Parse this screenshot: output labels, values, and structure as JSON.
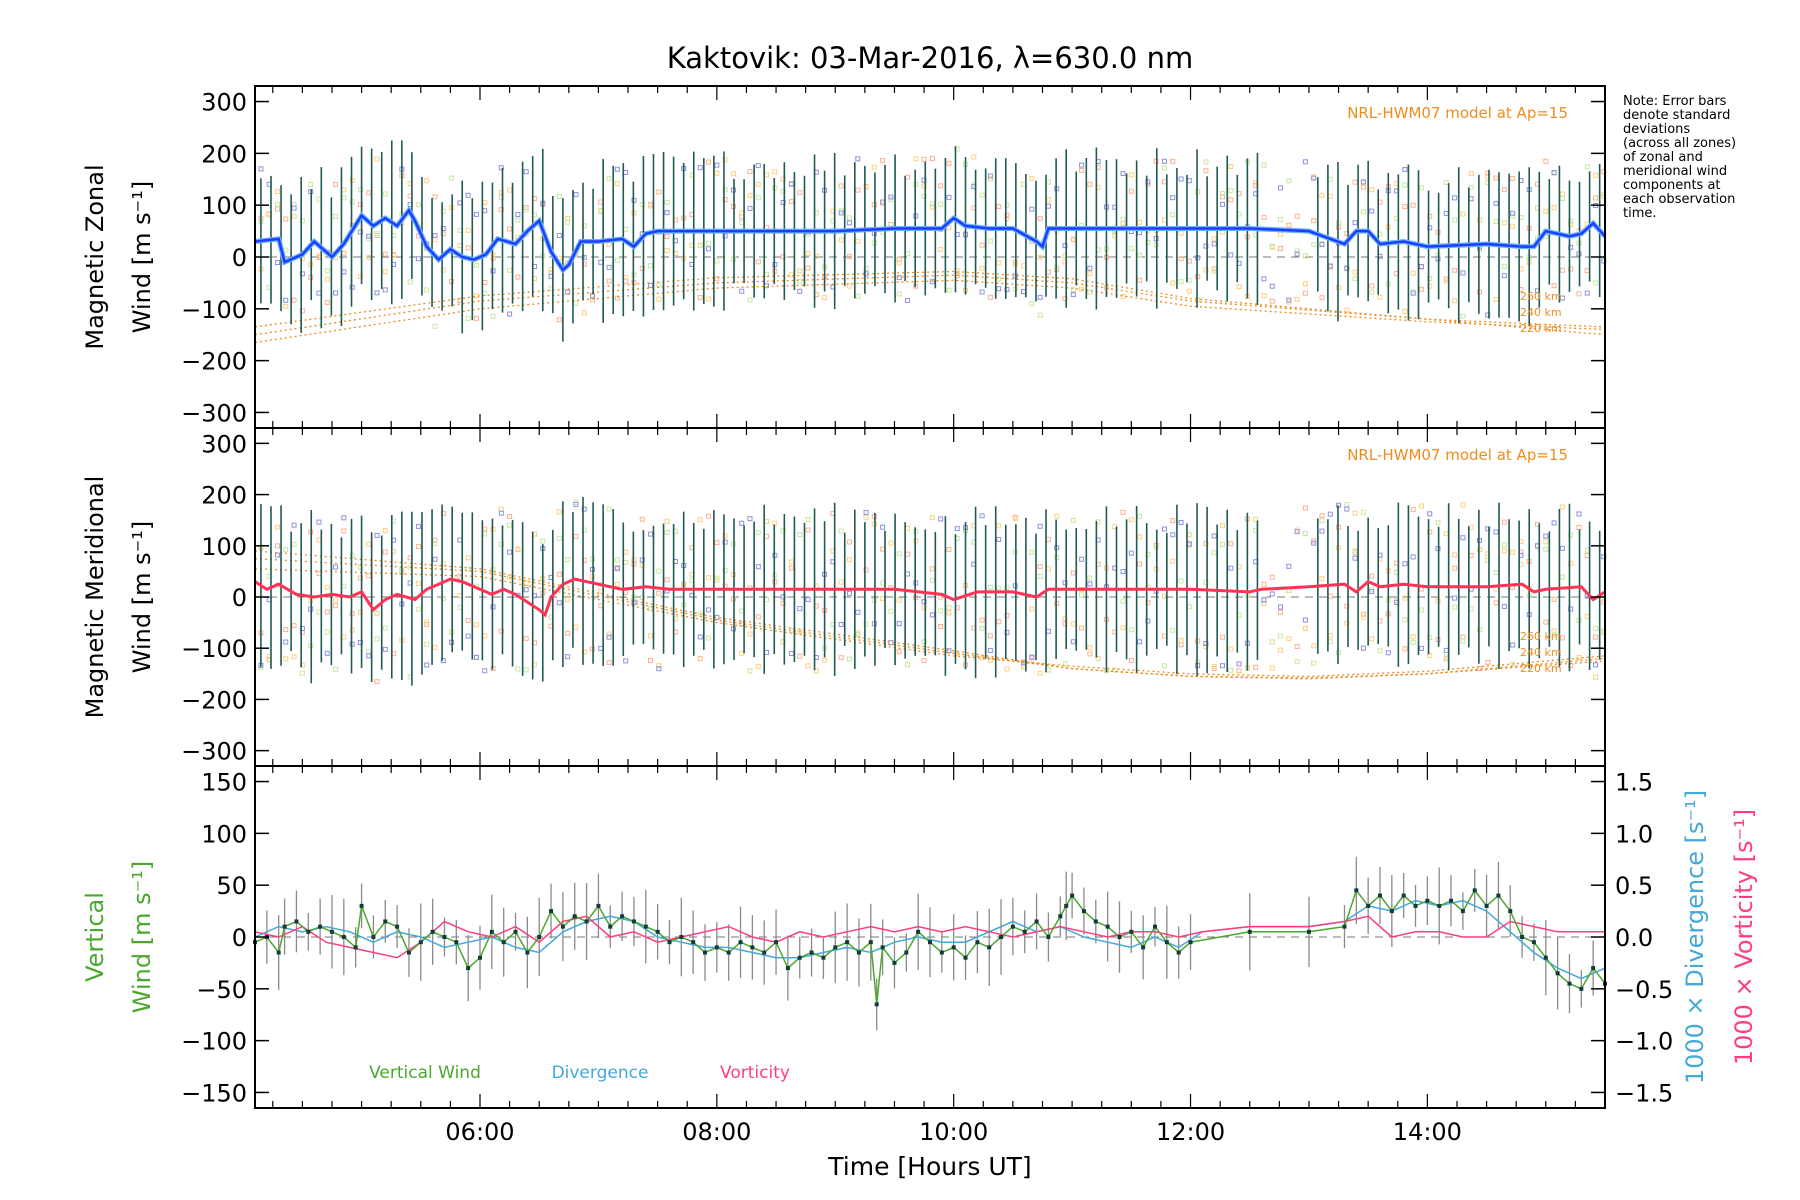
{
  "title": "Kaktovik: 03-Mar-2016, λ=630.0 nm",
  "note": "Note: Error bars\ndenote standard\ndeviations\n(across all zones)\nof zonal and\nmeridional wind\ncomponents at\neach observation\ntime.",
  "xlabel": "Time [Hours UT]",
  "colors": {
    "zonal": "#1f3dff",
    "zonal_light": "#66b4ff",
    "meridional": "#ff3355",
    "vertical": "#4aa82e",
    "divergence": "#44a8d8",
    "vorticity": "#ff3d7f",
    "hwm": "#f08c1e",
    "errorbar": "#1f5a55",
    "vert_errbar": "#8a8a8a"
  },
  "chart_data": [
    {
      "type": "line",
      "panel": "zonal",
      "ylabel": [
        "Magnetic Zonal",
        "Wind [m s⁻¹]"
      ],
      "ylim": [
        -330,
        330
      ],
      "yticks": [
        -300,
        -200,
        -100,
        0,
        100,
        200,
        300
      ],
      "xlim": [
        4.1,
        15.5
      ],
      "xticks": [
        6,
        8,
        10,
        12,
        14
      ],
      "xtick_labels": [
        "06:00",
        "08:00",
        "10:00",
        "12:00",
        "14:00"
      ],
      "model_label": "NRL-HWM07 model at Ap=15",
      "model_alt_labels": [
        "260 km",
        "240 km",
        "220 km"
      ],
      "series": [
        {
          "x": [
            4.1,
            4.3,
            4.35,
            4.5,
            4.6,
            4.75,
            4.85,
            5.0,
            5.1,
            5.2,
            5.3,
            5.4,
            5.45,
            5.55,
            5.65,
            5.75,
            5.85,
            5.95,
            6.05,
            6.15,
            6.3,
            6.4,
            6.5,
            6.6,
            6.7,
            6.75,
            6.85,
            7.0,
            7.2,
            7.3,
            7.4,
            7.5,
            8.0,
            8.5,
            9.0,
            9.5,
            9.9,
            10.0,
            10.1,
            10.3,
            10.5,
            10.7,
            10.75,
            10.8,
            11.0,
            11.5,
            12.0,
            12.5,
            13.0,
            13.3,
            13.4,
            13.5,
            13.6,
            13.8,
            14.0,
            14.5,
            14.8,
            14.9,
            15.0,
            15.2,
            15.3,
            15.4,
            15.5
          ],
          "y": [
            30,
            35,
            -10,
            5,
            30,
            0,
            25,
            80,
            60,
            75,
            60,
            90,
            70,
            20,
            -5,
            15,
            0,
            -5,
            5,
            35,
            25,
            50,
            70,
            10,
            -25,
            -15,
            30,
            30,
            35,
            20,
            45,
            50,
            50,
            50,
            50,
            55,
            55,
            75,
            60,
            55,
            55,
            30,
            20,
            55,
            55,
            55,
            55,
            55,
            50,
            25,
            50,
            50,
            25,
            30,
            20,
            25,
            20,
            20,
            50,
            40,
            45,
            65,
            40
          ]
        }
      ],
      "model_curves": [
        {
          "name": "260 km",
          "x": [
            4.1,
            6,
            8,
            10,
            11,
            12,
            14,
            15.5
          ],
          "y": [
            -165,
            -100,
            -60,
            -45,
            -60,
            -95,
            -125,
            -140
          ]
        },
        {
          "name": "240 km",
          "x": [
            4.1,
            6,
            8,
            10,
            11,
            12,
            14,
            15.5
          ],
          "y": [
            -150,
            -85,
            -50,
            -35,
            -50,
            -85,
            -120,
            -135
          ]
        },
        {
          "name": "220 km",
          "x": [
            4.1,
            6,
            8,
            10,
            11,
            12,
            14,
            15.5
          ],
          "y": [
            -135,
            -75,
            -40,
            -28,
            -42,
            -80,
            -120,
            -150
          ]
        }
      ]
    },
    {
      "type": "line",
      "panel": "meridional",
      "ylabel": [
        "Magnetic Meridional",
        "Wind [m s⁻¹]"
      ],
      "ylim": [
        -330,
        330
      ],
      "yticks": [
        -300,
        -200,
        -100,
        0,
        100,
        200,
        300
      ],
      "xlim": [
        4.1,
        15.5
      ],
      "model_label": "NRL-HWM07 model at Ap=15",
      "model_alt_labels": [
        "260 km",
        "240 km",
        "220 km"
      ],
      "series": [
        {
          "x": [
            4.1,
            4.2,
            4.3,
            4.45,
            4.6,
            4.75,
            4.9,
            5.0,
            5.1,
            5.2,
            5.3,
            5.45,
            5.55,
            5.65,
            5.75,
            5.85,
            5.95,
            6.1,
            6.2,
            6.3,
            6.4,
            6.5,
            6.55,
            6.6,
            6.7,
            6.8,
            7.0,
            7.2,
            7.4,
            7.6,
            8.0,
            8.5,
            9.0,
            9.5,
            9.9,
            10.0,
            10.2,
            10.5,
            10.7,
            10.8,
            11.0,
            11.5,
            12.0,
            12.5,
            12.6,
            13.0,
            13.3,
            13.4,
            13.5,
            13.6,
            13.8,
            14.0,
            14.5,
            14.8,
            14.9,
            15.0,
            15.3,
            15.4,
            15.5
          ],
          "y": [
            30,
            15,
            25,
            5,
            0,
            5,
            0,
            10,
            -25,
            -5,
            5,
            -5,
            15,
            25,
            35,
            30,
            20,
            5,
            15,
            5,
            -10,
            -25,
            -35,
            0,
            25,
            35,
            25,
            15,
            20,
            15,
            15,
            15,
            15,
            15,
            5,
            -5,
            10,
            10,
            0,
            15,
            15,
            15,
            15,
            10,
            15,
            20,
            25,
            10,
            30,
            20,
            25,
            20,
            20,
            25,
            10,
            15,
            20,
            -5,
            10
          ]
        }
      ],
      "model_curves": [
        {
          "name": "260 km",
          "x": [
            4.1,
            6,
            8,
            10,
            11,
            12,
            13,
            14,
            15.5
          ],
          "y": [
            55,
            40,
            -50,
            -115,
            -135,
            -150,
            -155,
            -145,
            -115
          ]
        },
        {
          "name": "240 km",
          "x": [
            4.1,
            6,
            8,
            10,
            11,
            12,
            13,
            14,
            15.5
          ],
          "y": [
            75,
            50,
            -45,
            -110,
            -140,
            -155,
            -158,
            -150,
            -120
          ]
        },
        {
          "name": "220 km",
          "x": [
            4.1,
            6,
            8,
            10,
            11,
            12,
            13,
            14,
            15.5
          ],
          "y": [
            90,
            55,
            -40,
            -105,
            -140,
            -155,
            -160,
            -150,
            -125
          ]
        }
      ]
    },
    {
      "type": "line",
      "panel": "vertical",
      "ylabel": [
        "Vertical",
        "Wind [m s⁻¹]"
      ],
      "ylim": [
        -165,
        165
      ],
      "yticks": [
        -150,
        -100,
        -50,
        0,
        50,
        100,
        150
      ],
      "right_axis": {
        "ylim": [
          -1.65,
          1.65
        ],
        "ticks": [
          -1.5,
          -1.0,
          -0.5,
          0.0,
          0.5,
          1.0,
          1.5
        ],
        "tick_labels": [
          "−1.5",
          "−1.0",
          "−0.5",
          "0.0",
          "0.5",
          "1.0",
          "1.5"
        ],
        "label_div": "1000 × Divergence [s⁻¹]",
        "label_vor": "1000 × Vorticity [s⁻¹]"
      },
      "xlim": [
        4.1,
        15.5
      ],
      "xticks": [
        6,
        8,
        10,
        12,
        14
      ],
      "xtick_labels": [
        "06:00",
        "08:00",
        "10:00",
        "12:00",
        "14:00"
      ],
      "legend": [
        "Vertical Wind",
        "Divergence",
        "Vorticity"
      ],
      "series": [
        {
          "name": "Vertical Wind",
          "x": [
            4.1,
            4.2,
            4.3,
            4.35,
            4.45,
            4.55,
            4.65,
            4.75,
            4.85,
            4.95,
            5.0,
            5.1,
            5.2,
            5.3,
            5.4,
            5.5,
            5.6,
            5.7,
            5.8,
            5.9,
            6.0,
            6.1,
            6.2,
            6.3,
            6.4,
            6.5,
            6.6,
            6.7,
            6.8,
            6.9,
            7.0,
            7.1,
            7.2,
            7.3,
            7.4,
            7.5,
            7.6,
            7.7,
            7.8,
            7.9,
            8.0,
            8.1,
            8.2,
            8.3,
            8.4,
            8.5,
            8.6,
            8.7,
            8.8,
            8.9,
            9.0,
            9.1,
            9.2,
            9.3,
            9.35,
            9.4,
            9.5,
            9.6,
            9.7,
            9.8,
            9.9,
            10.0,
            10.1,
            10.2,
            10.3,
            10.4,
            10.5,
            10.6,
            10.7,
            10.8,
            10.9,
            10.95,
            11.0,
            11.1,
            11.2,
            11.3,
            11.4,
            11.5,
            11.6,
            11.7,
            11.8,
            11.9,
            12.0,
            12.5,
            13.0,
            13.3,
            13.4,
            13.5,
            13.6,
            13.7,
            13.8,
            13.9,
            14.0,
            14.1,
            14.2,
            14.3,
            14.4,
            14.5,
            14.6,
            14.7,
            14.8,
            14.9,
            15.0,
            15.1,
            15.2,
            15.3,
            15.4,
            15.5
          ],
          "y": [
            -5,
            0,
            -15,
            10,
            15,
            5,
            10,
            5,
            0,
            -10,
            30,
            0,
            15,
            10,
            -15,
            -5,
            5,
            0,
            -5,
            -30,
            -20,
            5,
            -5,
            5,
            -15,
            0,
            25,
            10,
            20,
            15,
            30,
            10,
            20,
            15,
            10,
            5,
            -5,
            0,
            -5,
            -15,
            -10,
            -15,
            -5,
            -10,
            -15,
            -5,
            -30,
            -20,
            -15,
            -20,
            -10,
            -5,
            -15,
            -5,
            -65,
            -10,
            -25,
            -15,
            5,
            -5,
            -15,
            -10,
            -20,
            -5,
            -10,
            0,
            10,
            5,
            15,
            0,
            20,
            30,
            40,
            25,
            15,
            10,
            0,
            5,
            -10,
            10,
            -5,
            -15,
            -5,
            5,
            5,
            10,
            45,
            30,
            40,
            25,
            40,
            30,
            35,
            30,
            35,
            25,
            45,
            30,
            40,
            25,
            0,
            -5,
            -20,
            -35,
            -45,
            -50,
            -30,
            -45
          ]
        },
        {
          "name": "Divergence",
          "x": [
            4.1,
            4.3,
            4.5,
            4.7,
            4.9,
            5.1,
            5.3,
            5.5,
            5.7,
            5.9,
            6.1,
            6.3,
            6.5,
            6.7,
            6.9,
            7.1,
            7.3,
            7.5,
            7.7,
            7.9,
            8.1,
            8.3,
            8.5,
            8.7,
            8.9,
            9.1,
            9.3,
            9.5,
            9.7,
            9.9,
            10.1,
            10.3,
            10.5,
            10.7,
            10.9,
            11.1,
            11.3,
            11.5,
            11.7,
            11.9,
            12.1,
            12.5,
            13.0,
            13.3,
            13.5,
            13.7,
            13.9,
            14.1,
            14.3,
            14.5,
            14.7,
            14.9,
            15.1,
            15.3,
            15.5
          ],
          "y": [
            0.0,
            0.1,
            0.05,
            0.1,
            0.05,
            -0.05,
            0.05,
            0.0,
            -0.1,
            -0.05,
            0.0,
            -0.1,
            -0.15,
            0.05,
            0.15,
            0.2,
            0.15,
            0.0,
            -0.05,
            -0.1,
            -0.1,
            -0.15,
            -0.2,
            -0.2,
            -0.15,
            -0.1,
            -0.15,
            -0.05,
            0.0,
            -0.05,
            -0.05,
            0.05,
            0.15,
            0.05,
            0.1,
            0.0,
            -0.05,
            -0.1,
            0.0,
            -0.1,
            0.05,
            0.1,
            0.1,
            0.15,
            0.3,
            0.25,
            0.35,
            0.3,
            0.35,
            0.25,
            0.05,
            -0.15,
            -0.3,
            -0.4,
            -0.3
          ]
        },
        {
          "name": "Vorticity",
          "x": [
            4.1,
            4.3,
            4.5,
            4.7,
            4.9,
            5.1,
            5.3,
            5.5,
            5.7,
            5.9,
            6.1,
            6.3,
            6.5,
            6.7,
            6.9,
            7.1,
            7.3,
            7.5,
            7.7,
            7.9,
            8.1,
            8.3,
            8.5,
            8.7,
            8.9,
            9.1,
            9.3,
            9.5,
            9.7,
            9.9,
            10.1,
            10.3,
            10.5,
            10.7,
            10.9,
            11.1,
            11.3,
            11.5,
            11.7,
            11.9,
            12.1,
            12.5,
            13.0,
            13.3,
            13.5,
            13.7,
            13.9,
            14.1,
            14.3,
            14.5,
            14.7,
            14.9,
            15.1,
            15.3,
            15.5
          ],
          "y": [
            0.05,
            0.0,
            0.1,
            -0.05,
            -0.1,
            -0.15,
            -0.2,
            -0.05,
            0.15,
            0.05,
            0.0,
            0.1,
            -0.05,
            0.15,
            0.2,
            0.0,
            0.05,
            -0.05,
            0.0,
            0.05,
            0.1,
            0.0,
            -0.05,
            0.05,
            0.0,
            0.05,
            0.1,
            0.05,
            0.1,
            0.05,
            0.1,
            0.05,
            0.0,
            0.05,
            0.1,
            0.05,
            0.0,
            0.05,
            0.05,
            0.0,
            0.05,
            0.1,
            0.1,
            0.15,
            0.2,
            0.0,
            0.05,
            0.05,
            0.0,
            0.0,
            0.15,
            0.1,
            0.05,
            0.05,
            0.05
          ]
        }
      ]
    }
  ]
}
